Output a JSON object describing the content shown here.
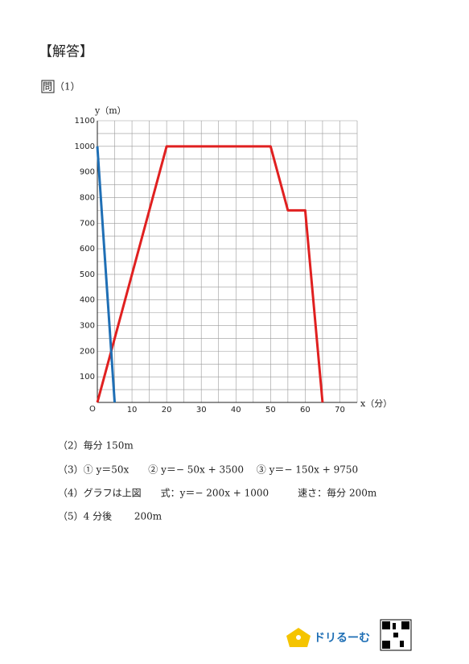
{
  "header": {
    "title": "【解答】"
  },
  "question": {
    "mark": "問",
    "number": "（1）"
  },
  "chart_data": {
    "type": "line",
    "ylabel": "y（m）",
    "xlabel": "x（分）",
    "origin_label": "O",
    "xlim": [
      0,
      75
    ],
    "ylim": [
      0,
      1100
    ],
    "xticks": [
      10,
      20,
      30,
      40,
      50,
      60,
      70
    ],
    "yticks": [
      100,
      200,
      300,
      400,
      500,
      600,
      700,
      800,
      900,
      1000,
      1100
    ],
    "xgrid": [
      0,
      5,
      10,
      15,
      20,
      25,
      30,
      35,
      40,
      45,
      50,
      55,
      60,
      65,
      70,
      75
    ],
    "ygrid": [
      0,
      50,
      100,
      150,
      200,
      250,
      300,
      350,
      400,
      450,
      500,
      550,
      600,
      650,
      700,
      750,
      800,
      850,
      900,
      950,
      1000,
      1050,
      1100
    ],
    "series": [
      {
        "color": "#e02020",
        "x": [
          0,
          20,
          50,
          55,
          60,
          65
        ],
        "values": [
          0,
          1000,
          1000,
          750,
          750,
          0
        ]
      },
      {
        "color": "#1f6fb5",
        "x": [
          0,
          5
        ],
        "values": [
          1000,
          0
        ]
      }
    ]
  },
  "answers": [
    "（2）毎分 150m",
    "（3）① y＝50x　　② y＝− 50x + 3500　 ③ y＝− 150x + 9750",
    "（4）グラフは上図　　式：y＝− 200x + 1000　　　速さ：毎分 200m",
    "（5）4 分後　　 200m"
  ],
  "footer": {
    "brand": "ドリるーむ"
  }
}
